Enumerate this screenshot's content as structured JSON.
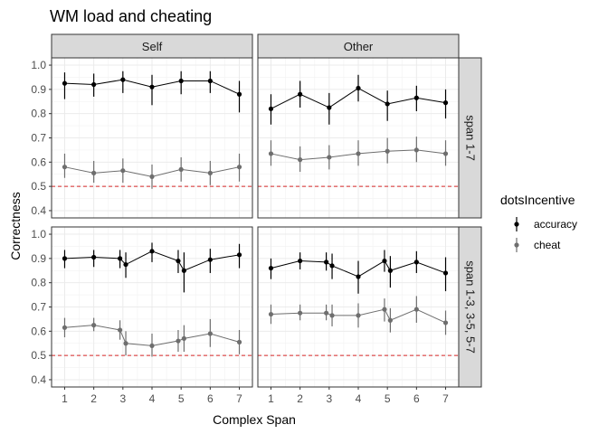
{
  "chart_data": {
    "type": "line",
    "title": "WM load and cheating",
    "xlabel": "Complex Span",
    "ylabel": "Correctness",
    "ylim": [
      0.37,
      1.03
    ],
    "yticks": [
      "0.4",
      "0.5",
      "0.6",
      "0.7",
      "0.8",
      "0.9",
      "1.0"
    ],
    "xticks": [
      "1",
      "2",
      "3",
      "4",
      "5",
      "6",
      "7"
    ],
    "reference_line": 0.5,
    "grid": true,
    "facet_columns": [
      "Self",
      "Other"
    ],
    "facet_rows": [
      "span 1-7",
      "span 1-3, 3-5, 5-7"
    ],
    "legend": {
      "title": "dotsIncentive",
      "position": "right",
      "entries": [
        {
          "label": "accuracy",
          "color": "#000000"
        },
        {
          "label": "cheat",
          "color": "#6e6e6e"
        }
      ]
    },
    "panels": [
      {
        "column": "Self",
        "row": "span 1-7",
        "series": [
          {
            "name": "accuracy",
            "points": [
              {
                "x": 1,
                "y": 0.925,
                "lo": 0.86,
                "hi": 0.97
              },
              {
                "x": 2,
                "y": 0.92,
                "lo": 0.87,
                "hi": 0.965
              },
              {
                "x": 3,
                "y": 0.94,
                "lo": 0.885,
                "hi": 0.975
              },
              {
                "x": 4,
                "y": 0.91,
                "lo": 0.835,
                "hi": 0.96
              },
              {
                "x": 5,
                "y": 0.935,
                "lo": 0.88,
                "hi": 0.975
              },
              {
                "x": 6,
                "y": 0.935,
                "lo": 0.885,
                "hi": 0.975
              },
              {
                "x": 7,
                "y": 0.88,
                "lo": 0.805,
                "hi": 0.935
              }
            ]
          },
          {
            "name": "cheat",
            "points": [
              {
                "x": 1,
                "y": 0.58,
                "lo": 0.535,
                "hi": 0.635
              },
              {
                "x": 2,
                "y": 0.555,
                "lo": 0.515,
                "hi": 0.605
              },
              {
                "x": 3,
                "y": 0.565,
                "lo": 0.515,
                "hi": 0.615
              },
              {
                "x": 4,
                "y": 0.54,
                "lo": 0.49,
                "hi": 0.59
              },
              {
                "x": 5,
                "y": 0.57,
                "lo": 0.52,
                "hi": 0.62
              },
              {
                "x": 6,
                "y": 0.555,
                "lo": 0.505,
                "hi": 0.605
              },
              {
                "x": 7,
                "y": 0.58,
                "lo": 0.52,
                "hi": 0.635
              }
            ]
          }
        ]
      },
      {
        "column": "Other",
        "row": "span 1-7",
        "series": [
          {
            "name": "accuracy",
            "points": [
              {
                "x": 1,
                "y": 0.82,
                "lo": 0.755,
                "hi": 0.88
              },
              {
                "x": 2,
                "y": 0.88,
                "lo": 0.825,
                "hi": 0.935
              },
              {
                "x": 3,
                "y": 0.825,
                "lo": 0.755,
                "hi": 0.885
              },
              {
                "x": 4,
                "y": 0.905,
                "lo": 0.85,
                "hi": 0.96
              },
              {
                "x": 5,
                "y": 0.84,
                "lo": 0.77,
                "hi": 0.895
              },
              {
                "x": 6,
                "y": 0.865,
                "lo": 0.81,
                "hi": 0.915
              },
              {
                "x": 7,
                "y": 0.845,
                "lo": 0.78,
                "hi": 0.9
              }
            ]
          },
          {
            "name": "cheat",
            "points": [
              {
                "x": 1,
                "y": 0.635,
                "lo": 0.585,
                "hi": 0.69
              },
              {
                "x": 2,
                "y": 0.61,
                "lo": 0.56,
                "hi": 0.665
              },
              {
                "x": 3,
                "y": 0.62,
                "lo": 0.57,
                "hi": 0.67
              },
              {
                "x": 4,
                "y": 0.635,
                "lo": 0.585,
                "hi": 0.69
              },
              {
                "x": 5,
                "y": 0.645,
                "lo": 0.595,
                "hi": 0.7
              },
              {
                "x": 6,
                "y": 0.65,
                "lo": 0.6,
                "hi": 0.705
              },
              {
                "x": 7,
                "y": 0.635,
                "lo": 0.585,
                "hi": 0.69
              }
            ]
          }
        ]
      },
      {
        "column": "Self",
        "row": "span 1-3, 3-5, 5-7",
        "series": [
          {
            "name": "accuracy",
            "points": [
              {
                "x": 1,
                "y": 0.9,
                "lo": 0.86,
                "hi": 0.935
              },
              {
                "x": 2,
                "y": 0.905,
                "lo": 0.865,
                "hi": 0.935
              },
              {
                "x": 2.9,
                "y": 0.9,
                "lo": 0.86,
                "hi": 0.935
              },
              {
                "x": 3.1,
                "y": 0.875,
                "lo": 0.82,
                "hi": 0.925
              },
              {
                "x": 4,
                "y": 0.93,
                "lo": 0.885,
                "hi": 0.965
              },
              {
                "x": 4.9,
                "y": 0.89,
                "lo": 0.84,
                "hi": 0.935
              },
              {
                "x": 5.1,
                "y": 0.85,
                "lo": 0.76,
                "hi": 0.925
              },
              {
                "x": 6,
                "y": 0.895,
                "lo": 0.84,
                "hi": 0.94
              },
              {
                "x": 7,
                "y": 0.915,
                "lo": 0.86,
                "hi": 0.96
              }
            ]
          },
          {
            "name": "cheat",
            "points": [
              {
                "x": 1,
                "y": 0.615,
                "lo": 0.575,
                "hi": 0.655
              },
              {
                "x": 2,
                "y": 0.625,
                "lo": 0.6,
                "hi": 0.655
              },
              {
                "x": 2.9,
                "y": 0.605,
                "lo": 0.565,
                "hi": 0.645
              },
              {
                "x": 3.1,
                "y": 0.55,
                "lo": 0.5,
                "hi": 0.6
              },
              {
                "x": 4,
                "y": 0.54,
                "lo": 0.495,
                "hi": 0.59
              },
              {
                "x": 4.9,
                "y": 0.56,
                "lo": 0.515,
                "hi": 0.605
              },
              {
                "x": 5.1,
                "y": 0.57,
                "lo": 0.515,
                "hi": 0.625
              },
              {
                "x": 6,
                "y": 0.59,
                "lo": 0.535,
                "hi": 0.65
              },
              {
                "x": 7,
                "y": 0.555,
                "lo": 0.505,
                "hi": 0.605
              }
            ]
          }
        ]
      },
      {
        "column": "Other",
        "row": "span 1-3, 3-5, 5-7",
        "series": [
          {
            "name": "accuracy",
            "points": [
              {
                "x": 1,
                "y": 0.86,
                "lo": 0.815,
                "hi": 0.9
              },
              {
                "x": 2,
                "y": 0.89,
                "lo": 0.855,
                "hi": 0.925
              },
              {
                "x": 2.9,
                "y": 0.885,
                "lo": 0.85,
                "hi": 0.925
              },
              {
                "x": 3.1,
                "y": 0.87,
                "lo": 0.815,
                "hi": 0.92
              },
              {
                "x": 4,
                "y": 0.825,
                "lo": 0.755,
                "hi": 0.89
              },
              {
                "x": 4.9,
                "y": 0.89,
                "lo": 0.845,
                "hi": 0.935
              },
              {
                "x": 5.1,
                "y": 0.85,
                "lo": 0.78,
                "hi": 0.91
              },
              {
                "x": 6,
                "y": 0.885,
                "lo": 0.84,
                "hi": 0.93
              },
              {
                "x": 7,
                "y": 0.84,
                "lo": 0.765,
                "hi": 0.905
              }
            ]
          },
          {
            "name": "cheat",
            "points": [
              {
                "x": 1,
                "y": 0.67,
                "lo": 0.63,
                "hi": 0.71
              },
              {
                "x": 2,
                "y": 0.675,
                "lo": 0.645,
                "hi": 0.71
              },
              {
                "x": 2.9,
                "y": 0.675,
                "lo": 0.645,
                "hi": 0.71
              },
              {
                "x": 3.1,
                "y": 0.665,
                "lo": 0.62,
                "hi": 0.71
              },
              {
                "x": 4,
                "y": 0.665,
                "lo": 0.615,
                "hi": 0.715
              },
              {
                "x": 4.9,
                "y": 0.69,
                "lo": 0.64,
                "hi": 0.735
              },
              {
                "x": 5.1,
                "y": 0.645,
                "lo": 0.595,
                "hi": 0.695
              },
              {
                "x": 6,
                "y": 0.69,
                "lo": 0.635,
                "hi": 0.745
              },
              {
                "x": 7,
                "y": 0.635,
                "lo": 0.585,
                "hi": 0.685
              }
            ]
          }
        ]
      }
    ]
  }
}
